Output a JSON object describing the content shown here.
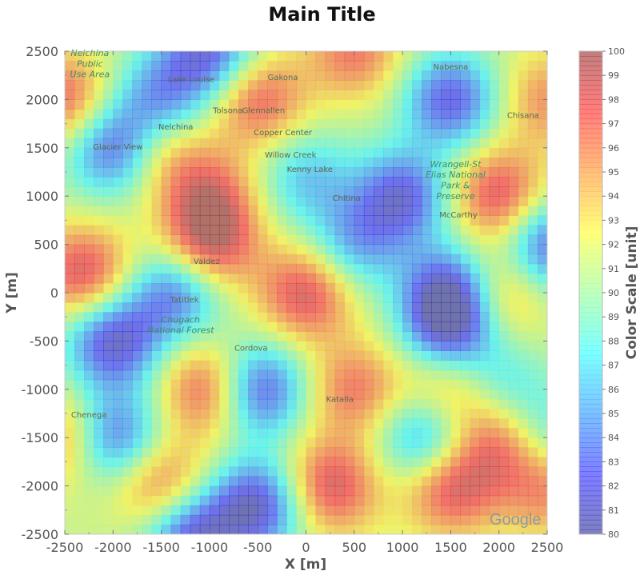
{
  "chart_data": {
    "type": "heatmap",
    "title": "Main Title",
    "xlabel": "X [m]",
    "ylabel": "Y [m]",
    "colorbar_label": "Color Scale [unit]",
    "xlim": [
      -2500,
      2500
    ],
    "ylim": [
      -2500,
      2500
    ],
    "clim": [
      80,
      100
    ],
    "colormap": "jet",
    "alpha": 0.5,
    "xticks": [
      "-2500",
      "-2000",
      "-1500",
      "-1000",
      "-500",
      "0",
      "500",
      "1000",
      "1500",
      "2000",
      "2500"
    ],
    "yticks": [
      "-2500",
      "-2000",
      "-1500",
      "-1000",
      "-500",
      "0",
      "500",
      "1000",
      "1500",
      "2000",
      "2500"
    ],
    "cticks": [
      "80",
      "81",
      "82",
      "83",
      "84",
      "85",
      "86",
      "87",
      "88",
      "89",
      "90",
      "91",
      "92",
      "93",
      "94",
      "95",
      "96",
      "97",
      "98",
      "99",
      "100"
    ],
    "background_value": 91,
    "hotspots": [
      {
        "x": -2500,
        "y": 2000,
        "v": 98
      },
      {
        "x": -1000,
        "y": 2500,
        "v": 82
      },
      {
        "x": -1500,
        "y": 2000,
        "v": 84
      },
      {
        "x": -2000,
        "y": 1500,
        "v": 82
      },
      {
        "x": -1500,
        "y": 1500,
        "v": 96
      },
      {
        "x": -500,
        "y": 2000,
        "v": 98
      },
      {
        "x": 500,
        "y": 2500,
        "v": 97
      },
      {
        "x": 1500,
        "y": 2000,
        "v": 82
      },
      {
        "x": 2000,
        "y": 1000,
        "v": 99
      },
      {
        "x": 2500,
        "y": 2000,
        "v": 96
      },
      {
        "x": -1000,
        "y": 1000,
        "v": 97
      },
      {
        "x": -1000,
        "y": 500,
        "v": 99
      },
      {
        "x": 1000,
        "y": 1000,
        "v": 82
      },
      {
        "x": 0,
        "y": 1200,
        "v": 86
      },
      {
        "x": -2300,
        "y": 200,
        "v": 99
      },
      {
        "x": 0,
        "y": 0,
        "v": 99
      },
      {
        "x": 500,
        "y": 500,
        "v": 85
      },
      {
        "x": 1500,
        "y": 0,
        "v": 81
      },
      {
        "x": 1500,
        "y": -400,
        "v": 83
      },
      {
        "x": 2000,
        "y": 0,
        "v": 97
      },
      {
        "x": 2500,
        "y": 500,
        "v": 82
      },
      {
        "x": -1350,
        "y": 0,
        "v": 83
      },
      {
        "x": -2000,
        "y": -500,
        "v": 81
      },
      {
        "x": -1000,
        "y": -1000,
        "v": 99
      },
      {
        "x": -500,
        "y": -1000,
        "v": 81
      },
      {
        "x": 500,
        "y": -1000,
        "v": 97
      },
      {
        "x": 1500,
        "y": -1000,
        "v": 97
      },
      {
        "x": 2000,
        "y": -1000,
        "v": 86
      },
      {
        "x": -2000,
        "y": -1500,
        "v": 82
      },
      {
        "x": 1250,
        "y": -1500,
        "v": 83
      },
      {
        "x": 2000,
        "y": -1500,
        "v": 98
      },
      {
        "x": -1500,
        "y": -2000,
        "v": 98
      },
      {
        "x": -500,
        "y": -2200,
        "v": 81
      },
      {
        "x": 250,
        "y": -2000,
        "v": 99
      },
      {
        "x": 1500,
        "y": -2000,
        "v": 99
      },
      {
        "x": 2500,
        "y": -2000,
        "v": 97
      },
      {
        "x": -1200,
        "y": -2500,
        "v": 81
      },
      {
        "x": -2500,
        "y": -1500,
        "v": 97
      },
      {
        "x": 2500,
        "y": -1500,
        "v": 86
      }
    ]
  },
  "map": {
    "places": [
      "Lake Louise",
      "Gakona",
      "Glennallen",
      "Tolsona",
      "Nelchina",
      "Copper Center",
      "Glacier View",
      "Willow Creek",
      "Kenny Lake",
      "Nabesna",
      "Chisana",
      "Chitina",
      "McCarthy",
      "Valdez",
      "Tatitlek",
      "Cordova",
      "Katalla",
      "Chenega"
    ],
    "parks": [
      "Nelchina Public Use Area",
      "Wrangell-St Elias National Park & Preserve",
      "Chugach National Forest"
    ],
    "logo": "Google"
  }
}
